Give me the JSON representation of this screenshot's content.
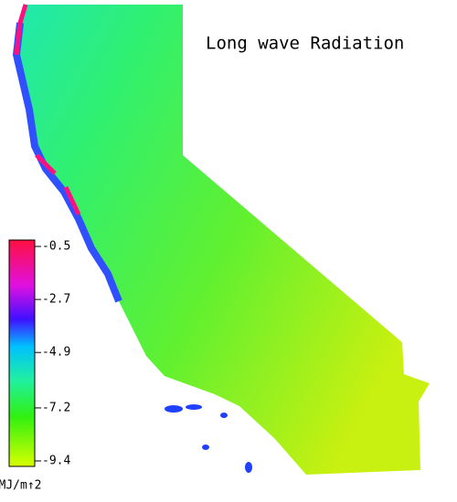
{
  "title": "Long wave Radiation",
  "colorbar": {
    "lim": [
      -9.4,
      -0.5
    ],
    "ticks": [
      -0.5,
      -2.7,
      -4.9,
      -7.2,
      -9.4
    ],
    "unit": "MJ/m↑2"
  }
}
